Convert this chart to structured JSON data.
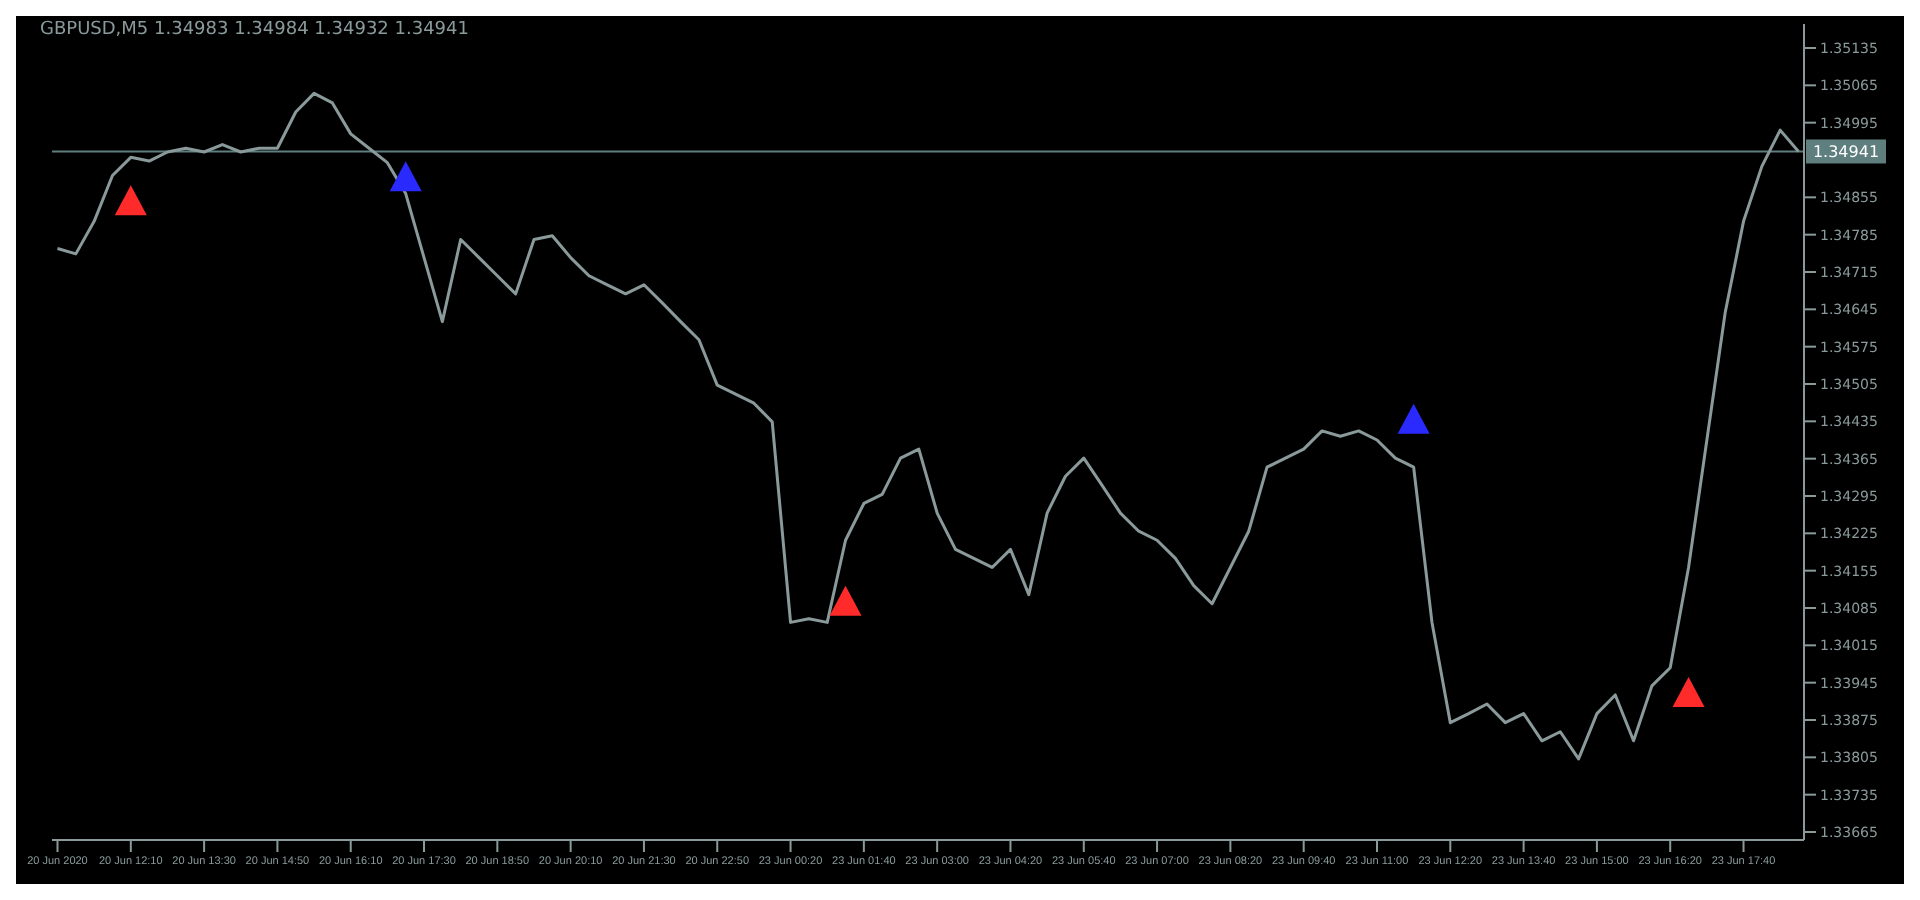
{
  "chart_data": {
    "type": "line",
    "title": "GBPUSD,M5 1.34983 1.34984 1.34932 1.34941",
    "categories": [
      "20 Jun 2020",
      null,
      null,
      null,
      "20 Jun 12:10",
      null,
      null,
      null,
      "20 Jun 13:30",
      null,
      null,
      null,
      "20 Jun 14:50",
      null,
      null,
      null,
      "20 Jun 16:10",
      null,
      null,
      null,
      "20 Jun 17:30",
      null,
      null,
      null,
      "20 Jun 18:50",
      null,
      null,
      null,
      "20 Jun 20:10",
      null,
      null,
      null,
      "20 Jun 21:30",
      null,
      null,
      null,
      "20 Jun 22:50",
      null,
      null,
      null,
      "23 Jun 00:20",
      null,
      null,
      null,
      "23 Jun 01:40",
      null,
      null,
      null,
      "23 Jun 03:00",
      null,
      null,
      null,
      "23 Jun 04:20",
      null,
      null,
      null,
      "23 Jun 05:40",
      null,
      null,
      null,
      "23 Jun 07:00",
      null,
      null,
      null,
      "23 Jun 08:20",
      null,
      null,
      null,
      "23 Jun 09:40",
      null,
      null,
      null,
      "23 Jun 11:00",
      null,
      null,
      null,
      "23 Jun 12:20",
      null,
      null,
      null,
      "23 Jun 13:40",
      null,
      null,
      null,
      "23 Jun 15:00",
      null,
      null,
      null,
      "23 Jun 16:20",
      null,
      null,
      null,
      "23 Jun 17:40",
      null,
      null,
      null
    ],
    "series": [
      {
        "color": "#8a9a9a",
        "values": [
          1.34759,
          1.34749,
          1.3481,
          1.34896,
          1.3493,
          1.34923,
          1.3494,
          1.34947,
          1.3494,
          1.34954,
          1.3494,
          1.34947,
          1.34947,
          1.35015,
          1.3505,
          1.35032,
          1.34974,
          1.34947,
          1.3492,
          1.34862,
          1.34742,
          1.34622,
          1.34776,
          1.34742,
          1.34708,
          1.34674,
          1.34776,
          1.34783,
          1.34742,
          1.34708,
          1.34691,
          1.34674,
          1.34691,
          1.34657,
          1.34622,
          1.34588,
          1.34503,
          1.34486,
          1.34469,
          1.34434,
          1.34058,
          1.34065,
          1.34058,
          1.34212,
          1.34281,
          1.34298,
          1.34366,
          1.34383,
          1.34263,
          1.34195,
          1.34178,
          1.34161,
          1.34195,
          1.3411,
          1.34263,
          1.34332,
          1.34366,
          1.34315,
          1.34263,
          1.34229,
          1.34212,
          1.34178,
          1.34127,
          1.34093,
          1.34161,
          1.34229,
          1.34349,
          1.34366,
          1.34383,
          1.34417,
          1.34407,
          1.34417,
          1.344,
          1.34366,
          1.34349,
          1.34058,
          1.3387,
          1.33887,
          1.33905,
          1.3387,
          1.33887,
          1.33836,
          1.33853,
          1.33802,
          1.33887,
          1.33922,
          1.33836,
          1.33939,
          1.33973,
          1.34161,
          1.344,
          1.34639,
          1.3481,
          1.34913,
          1.34981,
          1.34941
        ]
      },
      {
        "type": "scatter",
        "marker": "triangle",
        "color": "#ff2a2a",
        "values": [
          null,
          null,
          null,
          null,
          1.34844,
          null,
          null,
          null,
          null,
          null,
          null,
          null,
          null,
          null,
          null,
          null,
          null,
          null,
          null,
          null,
          null,
          null,
          null,
          null,
          null,
          null,
          null,
          null,
          null,
          null,
          null,
          null,
          null,
          null,
          null,
          null,
          null,
          null,
          null,
          null,
          null,
          null,
          null,
          1.34093,
          null,
          null,
          null,
          null,
          null,
          null,
          null,
          null,
          null,
          null,
          null,
          null,
          null,
          null,
          null,
          null,
          null,
          null,
          null,
          null,
          null,
          null,
          null,
          null,
          null,
          null,
          null,
          null,
          null,
          null,
          null,
          null,
          null,
          null,
          null,
          null,
          null,
          null,
          null,
          null,
          null,
          null,
          null,
          null,
          null,
          1.33922,
          null,
          null,
          null,
          null,
          null,
          null
        ]
      },
      {
        "type": "scatter",
        "marker": "triangle",
        "color": "#2a2aff",
        "values": [
          null,
          null,
          null,
          null,
          null,
          null,
          null,
          null,
          null,
          null,
          null,
          null,
          null,
          null,
          null,
          null,
          null,
          null,
          null,
          1.34889,
          null,
          null,
          null,
          null,
          null,
          null,
          null,
          null,
          null,
          null,
          null,
          null,
          null,
          null,
          null,
          null,
          null,
          null,
          null,
          null,
          null,
          null,
          null,
          null,
          null,
          null,
          null,
          null,
          null,
          null,
          null,
          null,
          null,
          null,
          null,
          null,
          null,
          null,
          null,
          null,
          null,
          null,
          null,
          null,
          null,
          null,
          null,
          null,
          null,
          null,
          null,
          null,
          null,
          null,
          1.34434,
          null,
          null,
          null,
          null,
          null,
          null,
          null,
          null,
          null,
          null,
          null,
          null,
          null,
          null,
          null,
          null,
          null,
          null,
          null,
          null,
          null
        ]
      }
    ],
    "ylim": [
      1.3365,
      1.3518
    ],
    "yticks": [
      1.35135,
      1.35065,
      1.34995,
      1.34855,
      1.34785,
      1.34715,
      1.34645,
      1.34575,
      1.34505,
      1.34435,
      1.34365,
      1.34295,
      1.34225,
      1.34155,
      1.34085,
      1.34015,
      1.33945,
      1.33875,
      1.33805,
      1.33735,
      1.33665
    ],
    "ref_lines": [
      {
        "axis": "y",
        "value": 1.34941,
        "label": "1.34941",
        "color": "#5f7f7f"
      }
    ],
    "grid": false
  }
}
